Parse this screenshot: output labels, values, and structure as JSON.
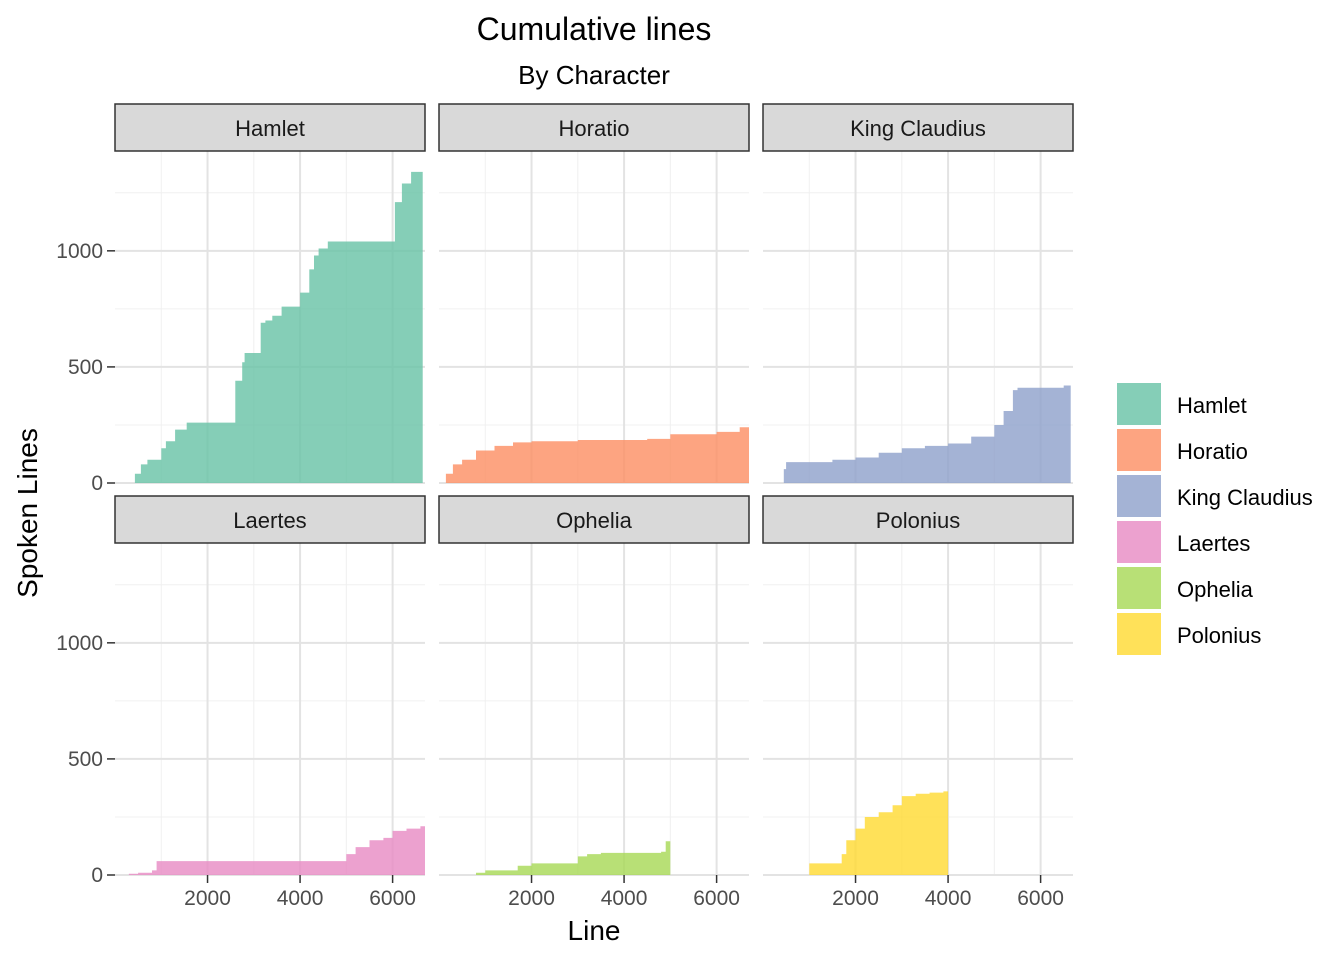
{
  "chart_data": {
    "type": "area",
    "title": "Cumulative lines",
    "subtitle": "By Character",
    "xlabel": "Line",
    "ylabel": "Spoken Lines",
    "xlim": [
      0,
      6700
    ],
    "ylim": [
      0,
      1430
    ],
    "x_ticks": [
      2000,
      4000,
      6000
    ],
    "y_ticks": [
      0,
      500,
      1000
    ],
    "x_tick_labels": [
      "2000",
      "4000",
      "6000"
    ],
    "y_tick_labels": [
      "0",
      "500",
      "1000"
    ],
    "grid": true,
    "facets": {
      "rows": 2,
      "cols": 3,
      "shared_axes": true
    },
    "legend": {
      "position": "right",
      "entries": [
        "Hamlet",
        "Horatio",
        "King Claudius",
        "Laertes",
        "Ophelia",
        "Polonius"
      ]
    },
    "series": [
      {
        "name": "Hamlet",
        "color": "#66c2a5",
        "x": [
          340,
          430,
          560,
          700,
          1000,
          1100,
          1300,
          1550,
          1650,
          2200,
          2600,
          2750,
          2800,
          3150,
          3250,
          3400,
          3600,
          4000,
          4200,
          4300,
          4400,
          4600,
          4800,
          5900,
          6050,
          6200,
          6400,
          6650
        ],
        "y": [
          0,
          40,
          80,
          100,
          150,
          180,
          230,
          260,
          260,
          260,
          440,
          520,
          560,
          690,
          700,
          720,
          760,
          820,
          920,
          980,
          1010,
          1040,
          1040,
          1040,
          1210,
          1290,
          1340,
          1430
        ]
      },
      {
        "name": "Horatio",
        "color": "#fc8d62",
        "x": [
          0,
          150,
          300,
          500,
          800,
          1200,
          1600,
          2000,
          3000,
          4500,
          5000,
          6000,
          6500,
          6700
        ],
        "y": [
          0,
          40,
          80,
          100,
          140,
          160,
          175,
          180,
          185,
          190,
          210,
          220,
          240,
          260
        ]
      },
      {
        "name": "King Claudius",
        "color": "#8da0cb",
        "x": [
          300,
          450,
          500,
          800,
          1500,
          2000,
          2500,
          3000,
          3500,
          4000,
          4500,
          5000,
          5200,
          5400,
          5500,
          6000,
          6500,
          6650
        ],
        "y": [
          0,
          60,
          90,
          90,
          100,
          110,
          130,
          150,
          160,
          170,
          200,
          250,
          310,
          400,
          410,
          410,
          420,
          430
        ]
      },
      {
        "name": "Laertes",
        "color": "#e78ac3",
        "x": [
          0,
          300,
          500,
          800,
          900,
          4900,
          5000,
          5200,
          5500,
          5800,
          6000,
          6300,
          6600,
          6700
        ],
        "y": [
          0,
          5,
          10,
          20,
          60,
          60,
          90,
          120,
          150,
          160,
          190,
          200,
          210,
          220
        ]
      },
      {
        "name": "Ophelia",
        "color": "#a6d854",
        "x": [
          600,
          800,
          1000,
          1700,
          2000,
          3000,
          3200,
          3500,
          4000,
          4500,
          4800,
          4900,
          5000
        ],
        "y": [
          0,
          10,
          20,
          40,
          50,
          80,
          90,
          95,
          95,
          95,
          100,
          145,
          150
        ]
      },
      {
        "name": "Polonius",
        "color": "#ffd92f",
        "x": [
          900,
          1000,
          1600,
          1700,
          1800,
          2000,
          2200,
          2500,
          2800,
          3000,
          3300,
          3600,
          3900,
          4000
        ],
        "y": [
          0,
          50,
          50,
          90,
          150,
          200,
          250,
          270,
          300,
          340,
          350,
          355,
          360,
          370
        ]
      }
    ]
  }
}
